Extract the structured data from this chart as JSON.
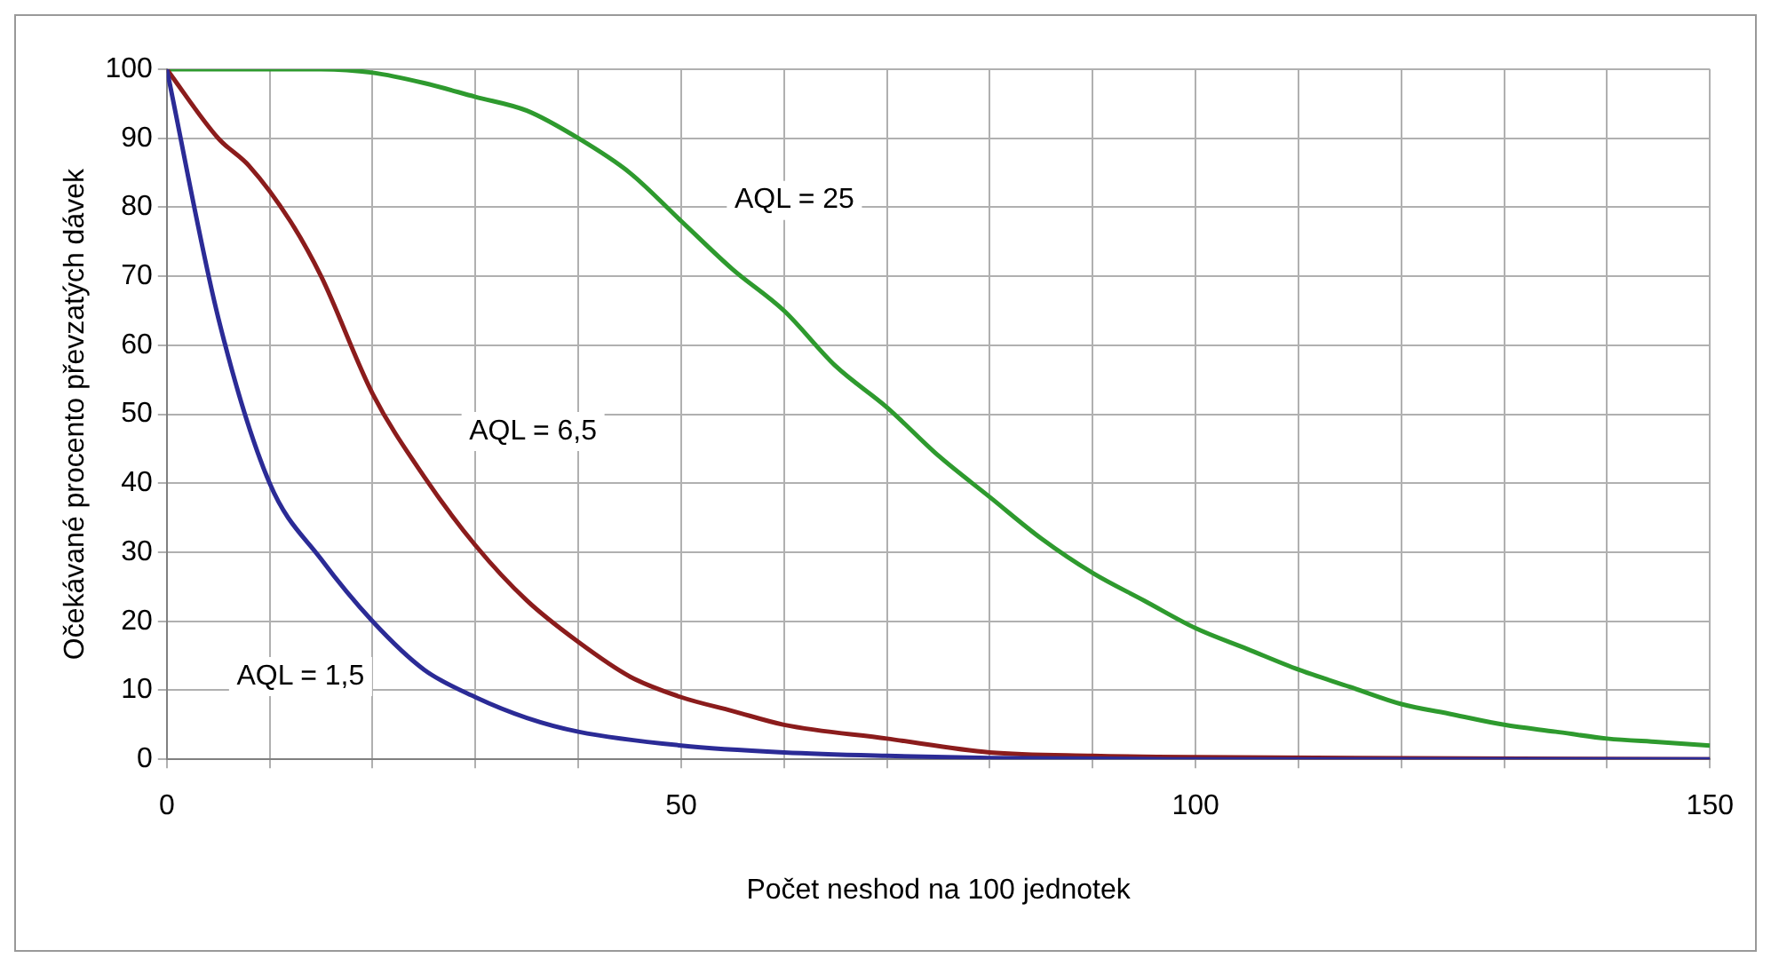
{
  "chart_data": {
    "type": "line",
    "xlabel": "Počet neshod na 100 jednotek",
    "ylabel": "Očekávané procento převzatých dávek",
    "xlim": [
      0,
      150
    ],
    "ylim": [
      0,
      100
    ],
    "xticks": [
      0,
      {
        "value": 10,
        "label": null
      },
      {
        "value": 20,
        "label": null
      },
      {
        "value": 30,
        "label": null
      },
      {
        "value": 40,
        "label": null
      },
      50,
      {
        "value": 60,
        "label": null
      },
      {
        "value": 70,
        "label": null
      },
      {
        "value": 80,
        "label": null
      },
      {
        "value": 90,
        "label": null
      },
      100,
      {
        "value": 110,
        "label": null
      },
      {
        "value": 120,
        "label": null
      },
      {
        "value": 130,
        "label": null
      },
      {
        "value": 140,
        "label": null
      },
      150
    ],
    "yticks": [
      0,
      10,
      20,
      30,
      40,
      50,
      60,
      70,
      80,
      90,
      100
    ],
    "grid": true,
    "legend": false,
    "marker": "none",
    "line_style": "solid",
    "series": [
      {
        "name": "AQL = 1,5",
        "color": "#2b2b96",
        "x": [
          0,
          5,
          10,
          15,
          20,
          25,
          30,
          35,
          40,
          50,
          60,
          70,
          80,
          100,
          150
        ],
        "values": [
          100,
          64,
          40,
          29,
          20,
          13,
          9,
          6,
          4,
          2,
          1,
          0.5,
          0.2,
          0,
          0
        ]
      },
      {
        "name": "AQL = 6,5",
        "color": "#8b1c1c",
        "x": [
          0,
          5,
          8,
          12,
          15,
          20,
          25,
          30,
          35,
          40,
          45,
          50,
          55,
          60,
          70,
          80,
          90,
          100,
          150
        ],
        "values": [
          100,
          90,
          86,
          78,
          70,
          53,
          41,
          31,
          23,
          17,
          12,
          9,
          7,
          5,
          3,
          1,
          0.5,
          0.3,
          0
        ]
      },
      {
        "name": "AQL = 25",
        "color": "#2e9a2e",
        "x": [
          0,
          10,
          15,
          20,
          25,
          30,
          35,
          40,
          45,
          50,
          55,
          60,
          65,
          70,
          75,
          80,
          85,
          90,
          95,
          100,
          105,
          110,
          115,
          120,
          125,
          130,
          135,
          140,
          145,
          150
        ],
        "values": [
          100,
          100,
          100,
          99.5,
          98,
          96,
          94,
          90,
          85,
          78,
          71,
          65,
          57,
          51,
          44,
          38,
          32,
          27,
          23,
          19,
          16,
          13,
          10.5,
          8,
          6.5,
          5,
          4,
          3,
          2.5,
          2
        ]
      }
    ]
  }
}
